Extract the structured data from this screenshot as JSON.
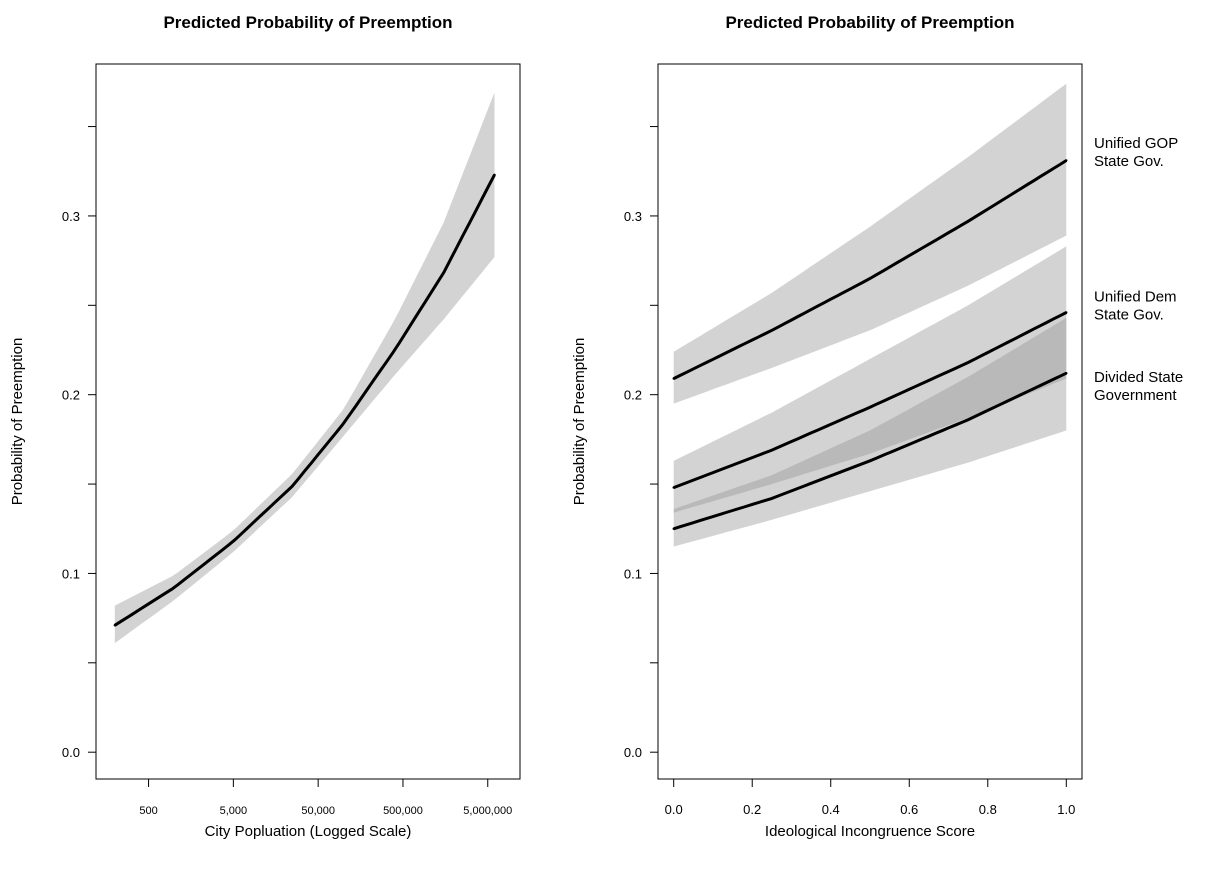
{
  "chart_data": [
    {
      "type": "line",
      "title": "Predicted Probability of Preemption",
      "xlabel": "City Popluation (Logged Scale)",
      "ylabel": "Probability of Preemption",
      "x_scale": "log10",
      "x_ticks": [
        500,
        5000,
        50000,
        500000,
        5000000
      ],
      "x_tick_labels": [
        "500",
        "5,000",
        "50,000",
        "500,000",
        "5,000,000"
      ],
      "xlim": [
        120,
        12000000
      ],
      "ylim": [
        -0.015,
        0.385
      ],
      "y_ticks": [
        0.0,
        0.05,
        0.1,
        0.15,
        0.2,
        0.25,
        0.3,
        0.35
      ],
      "y_tick_labels": [
        "0.0",
        "",
        "0.1",
        "",
        "0.2",
        "",
        "0.3",
        ""
      ],
      "grid": false,
      "series": [
        {
          "x": [
            200,
            1000,
            5000,
            25000,
            100000,
            400000,
            1500000,
            6000000
          ],
          "y": [
            0.071,
            0.092,
            0.118,
            0.149,
            0.184,
            0.225,
            0.268,
            0.323
          ],
          "lower": [
            0.061,
            0.085,
            0.112,
            0.143,
            0.177,
            0.211,
            0.242,
            0.277
          ],
          "upper": [
            0.082,
            0.099,
            0.124,
            0.156,
            0.192,
            0.242,
            0.296,
            0.369
          ]
        }
      ]
    },
    {
      "type": "line",
      "title": "Predicted Probability of Preemption",
      "xlabel": "Ideological Incongruence Score",
      "ylabel": "Probability of Preemption",
      "xlim": [
        -0.04,
        1.04
      ],
      "ylim": [
        -0.015,
        0.385
      ],
      "x_ticks": [
        0.0,
        0.2,
        0.4,
        0.6,
        0.8,
        1.0
      ],
      "x_tick_labels": [
        "0.0",
        "0.2",
        "0.4",
        "0.6",
        "0.8",
        "1.0"
      ],
      "y_ticks": [
        0.0,
        0.05,
        0.1,
        0.15,
        0.2,
        0.25,
        0.3,
        0.35
      ],
      "y_tick_labels": [
        "0.0",
        "",
        "0.1",
        "",
        "0.2",
        "",
        "0.3",
        ""
      ],
      "grid": false,
      "series": [
        {
          "label_lines": [
            "Unified GOP",
            "State Gov."
          ],
          "label_y": 0.338,
          "x": [
            0.0,
            0.25,
            0.5,
            0.75,
            1.0
          ],
          "y": [
            0.209,
            0.236,
            0.265,
            0.297,
            0.331
          ],
          "lower": [
            0.195,
            0.215,
            0.236,
            0.261,
            0.289
          ],
          "upper": [
            0.224,
            0.257,
            0.294,
            0.333,
            0.374
          ]
        },
        {
          "label_lines": [
            "Unified Dem",
            "State Gov."
          ],
          "label_y": 0.252,
          "x": [
            0.0,
            0.25,
            0.5,
            0.75,
            1.0
          ],
          "y": [
            0.148,
            0.169,
            0.193,
            0.218,
            0.246
          ],
          "lower": [
            0.134,
            0.15,
            0.167,
            0.187,
            0.209
          ],
          "upper": [
            0.163,
            0.19,
            0.22,
            0.25,
            0.283
          ]
        },
        {
          "label_lines": [
            "Divided State",
            "Government"
          ],
          "label_y": 0.207,
          "x": [
            0.0,
            0.25,
            0.5,
            0.75,
            1.0
          ],
          "y": [
            0.125,
            0.142,
            0.163,
            0.186,
            0.212
          ],
          "lower": [
            0.115,
            0.13,
            0.146,
            0.162,
            0.18
          ],
          "upper": [
            0.136,
            0.155,
            0.18,
            0.21,
            0.243
          ]
        }
      ]
    }
  ]
}
